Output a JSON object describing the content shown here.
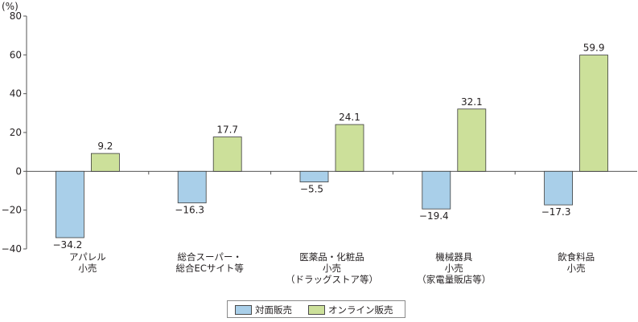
{
  "chart_data": {
    "type": "bar",
    "unit_label": "(%)",
    "ylim": [
      -40,
      80
    ],
    "yticks": [
      "80",
      "60",
      "40",
      "20",
      "0",
      "−20",
      "−40"
    ],
    "categories": [
      [
        "アパレル",
        "小売"
      ],
      [
        "総合スーパー・",
        "総合ECサイト等"
      ],
      [
        "医薬品・化粧品",
        "小売",
        "（ドラッグストア等）"
      ],
      [
        "機械器具",
        "小売",
        "（家電量販店等）"
      ],
      [
        "飲食料品",
        "小売"
      ]
    ],
    "series": [
      {
        "name": "対面販売",
        "color": "#a9cfe9",
        "values": [
          -34.2,
          -16.3,
          -5.5,
          -19.4,
          -17.3
        ],
        "labels": [
          "−34.2",
          "−16.3",
          "−5.5",
          "−19.4",
          "−17.3"
        ]
      },
      {
        "name": "オンライン販売",
        "color": "#cce09a",
        "values": [
          9.2,
          17.7,
          24.1,
          32.1,
          59.9
        ],
        "labels": [
          "9.2",
          "17.7",
          "24.1",
          "32.1",
          "59.9"
        ]
      }
    ],
    "grid": false,
    "legend_position": "bottom-center"
  }
}
